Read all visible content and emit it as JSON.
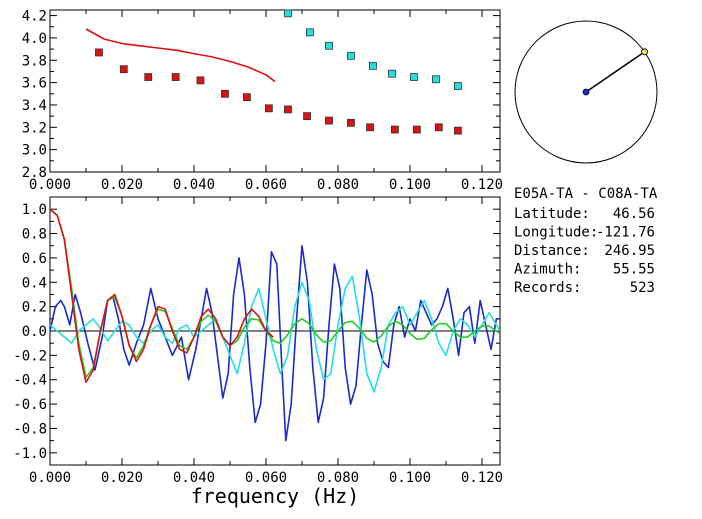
{
  "station_pair": "E05A-TA - C08A-TA",
  "info": [
    {
      "label": "Latitude:",
      "value": "46.56"
    },
    {
      "label": "Longitude:",
      "value": "-121.76"
    },
    {
      "label": "Distance:",
      "value": "246.95"
    },
    {
      "label": "Azimuth:",
      "value": "55.55"
    },
    {
      "label": "Records:",
      "value": "523"
    }
  ],
  "azimuth_deg": 55.55,
  "colors": {
    "red": "#dd1111",
    "blue": "#1a2acc",
    "cyan": "#22e0e0",
    "green": "#22cc22",
    "black": "#000000"
  },
  "chart_data": [
    {
      "type": "scatter",
      "xlim": [
        0.0,
        0.125
      ],
      "ylim": [
        2.8,
        4.25
      ],
      "xticks": [
        "0.000",
        "0.020",
        "0.040",
        "0.060",
        "0.080",
        "0.100",
        "0.120"
      ],
      "yticks": [
        "2.8",
        "3.0",
        "3.2",
        "3.4",
        "3.6",
        "3.8",
        "4.0",
        "4.2"
      ],
      "series": [
        {
          "color": "red",
          "mode": "line",
          "x": [
            0.01,
            0.015,
            0.02,
            0.025,
            0.03,
            0.035,
            0.04,
            0.045,
            0.05,
            0.055,
            0.06,
            0.0625
          ],
          "y": [
            4.08,
            3.99,
            3.95,
            3.93,
            3.91,
            3.89,
            3.86,
            3.83,
            3.79,
            3.74,
            3.67,
            3.61
          ]
        },
        {
          "color": "red",
          "mode": "markers",
          "x": [
            0.0136,
            0.0205,
            0.0273,
            0.0349,
            0.0418,
            0.0486,
            0.0547,
            0.0608,
            0.0661,
            0.0714,
            0.0775,
            0.0836,
            0.0889,
            0.0958,
            0.1019,
            0.108,
            0.1133
          ],
          "y": [
            3.87,
            3.72,
            3.65,
            3.65,
            3.62,
            3.5,
            3.47,
            3.37,
            3.36,
            3.3,
            3.26,
            3.24,
            3.2,
            3.18,
            3.18,
            3.2,
            3.17
          ]
        },
        {
          "color": "cyan",
          "mode": "markers",
          "x": [
            0.0661,
            0.0722,
            0.0775,
            0.0836,
            0.0897,
            0.095,
            0.1011,
            0.1072,
            0.1133
          ],
          "y": [
            4.22,
            4.05,
            3.93,
            3.84,
            3.75,
            3.68,
            3.65,
            3.63,
            3.57
          ]
        }
      ]
    },
    {
      "type": "line",
      "xlabel": "frequency (Hz)",
      "xlim": [
        0.0,
        0.125
      ],
      "ylim": [
        -1.1,
        1.1
      ],
      "xticks": [
        "0.000",
        "0.020",
        "0.040",
        "0.060",
        "0.080",
        "0.100",
        "0.120"
      ],
      "yticks": [
        "1.0",
        "0.8",
        "0.6",
        "0.4",
        "0.2",
        "0.0",
        "-0.2",
        "-0.4",
        "-0.6",
        "-0.8",
        "-1.0"
      ],
      "series": [
        {
          "color": "blue",
          "x": [
            0.0,
            0.0015,
            0.003,
            0.004,
            0.0055,
            0.007,
            0.0085,
            0.0105,
            0.0125,
            0.0145,
            0.016,
            0.0175,
            0.019,
            0.0205,
            0.022,
            0.024,
            0.026,
            0.028,
            0.03,
            0.032,
            0.034,
            0.0365,
            0.0385,
            0.0405,
            0.042,
            0.0435,
            0.045,
            0.0465,
            0.048,
            0.0495,
            0.051,
            0.0525,
            0.054,
            0.0555,
            0.057,
            0.0585,
            0.06,
            0.0615,
            0.063,
            0.0645,
            0.0655,
            0.067,
            0.0685,
            0.07,
            0.0715,
            0.073,
            0.0745,
            0.076,
            0.0775,
            0.079,
            0.0805,
            0.082,
            0.0835,
            0.085,
            0.0865,
            0.088,
            0.0895,
            0.091,
            0.0925,
            0.094,
            0.0955,
            0.097,
            0.0985,
            0.1,
            0.1015,
            0.103,
            0.1045,
            0.106,
            0.1075,
            0.109,
            0.1105,
            0.112,
            0.1135,
            0.115,
            0.1165,
            0.118,
            0.1195,
            0.121,
            0.1225,
            0.124,
            0.125
          ],
          "y": [
            0.0,
            0.2,
            0.25,
            0.2,
            0.05,
            0.3,
            0.15,
            -0.1,
            -0.32,
            -0.05,
            0.25,
            0.28,
            0.1,
            -0.15,
            -0.28,
            -0.1,
            0.05,
            0.35,
            0.1,
            -0.05,
            -0.2,
            -0.05,
            -0.4,
            -0.15,
            0.1,
            0.35,
            0.15,
            -0.2,
            -0.55,
            -0.35,
            0.3,
            0.6,
            0.3,
            -0.3,
            -0.75,
            -0.6,
            -0.1,
            0.65,
            0.55,
            -0.35,
            -0.9,
            -0.6,
            0.1,
            0.7,
            0.4,
            -0.3,
            -0.75,
            -0.55,
            0.05,
            0.55,
            0.35,
            -0.3,
            -0.6,
            -0.45,
            0.05,
            0.5,
            0.3,
            -0.1,
            -0.25,
            -0.3,
            0.05,
            0.2,
            -0.05,
            0.1,
            0.0,
            0.25,
            0.15,
            0.05,
            0.1,
            0.2,
            0.35,
            0.1,
            -0.2,
            0.15,
            0.2,
            -0.1,
            0.25,
            0.05,
            -0.15,
            0.1,
            0.1
          ]
        },
        {
          "color": "cyan",
          "x": [
            0.0,
            0.002,
            0.004,
            0.006,
            0.008,
            0.01,
            0.012,
            0.014,
            0.016,
            0.018,
            0.02,
            0.022,
            0.024,
            0.026,
            0.028,
            0.03,
            0.032,
            0.034,
            0.036,
            0.038,
            0.04,
            0.042,
            0.044,
            0.046,
            0.048,
            0.05,
            0.052,
            0.054,
            0.056,
            0.058,
            0.06,
            0.062,
            0.064,
            0.066,
            0.068,
            0.07,
            0.072,
            0.074,
            0.076,
            0.078,
            0.08,
            0.082,
            0.084,
            0.086,
            0.088,
            0.09,
            0.092,
            0.094,
            0.096,
            0.098,
            0.1,
            0.102,
            0.104,
            0.106,
            0.108,
            0.11,
            0.112,
            0.114,
            0.116,
            0.118,
            0.12,
            0.122,
            0.124,
            0.125
          ],
          "y": [
            0.05,
            0.0,
            -0.05,
            -0.1,
            0.0,
            0.05,
            0.1,
            0.02,
            -0.08,
            0.0,
            0.08,
            0.05,
            -0.05,
            -0.1,
            0.0,
            0.05,
            -0.05,
            -0.1,
            0.02,
            0.05,
            -0.05,
            0.0,
            0.05,
            0.1,
            -0.05,
            -0.2,
            -0.35,
            -0.1,
            0.2,
            0.35,
            0.1,
            -0.15,
            -0.35,
            -0.2,
            0.2,
            0.4,
            0.25,
            -0.15,
            -0.4,
            -0.35,
            0.05,
            0.35,
            0.45,
            0.1,
            -0.35,
            -0.5,
            -0.3,
            0.05,
            0.15,
            0.2,
            0.05,
            0.15,
            0.25,
            0.1,
            -0.1,
            -0.2,
            0.0,
            0.1,
            0.05,
            -0.05,
            0.05,
            0.15,
            0.05,
            0.0
          ]
        },
        {
          "color": "green",
          "x": [
            0.0,
            0.002,
            0.004,
            0.006,
            0.008,
            0.01,
            0.012,
            0.014,
            0.016,
            0.018,
            0.02,
            0.022,
            0.024,
            0.026,
            0.028,
            0.03,
            0.032,
            0.034,
            0.036,
            0.038,
            0.04,
            0.042,
            0.044,
            0.046,
            0.048,
            0.05,
            0.052,
            0.054,
            0.056,
            0.058,
            0.06,
            0.062,
            0.064,
            0.066,
            0.068,
            0.07,
            0.072,
            0.074,
            0.076,
            0.078,
            0.08,
            0.082,
            0.084,
            0.086,
            0.088,
            0.09,
            0.092,
            0.094,
            0.096,
            0.098,
            0.1,
            0.102,
            0.104,
            0.106,
            0.108,
            0.11,
            0.112,
            0.114,
            0.116,
            0.118,
            0.12,
            0.122,
            0.124,
            0.125
          ],
          "y": [
            1.0,
            0.95,
            0.75,
            0.35,
            -0.1,
            -0.38,
            -0.3,
            0.0,
            0.25,
            0.28,
            0.12,
            -0.12,
            -0.22,
            -0.12,
            0.05,
            0.18,
            0.16,
            0.02,
            -0.12,
            -0.15,
            -0.05,
            0.08,
            0.13,
            0.08,
            -0.05,
            -0.12,
            -0.08,
            0.03,
            0.1,
            0.09,
            0.0,
            -0.08,
            -0.1,
            -0.03,
            0.06,
            0.1,
            0.06,
            -0.03,
            -0.09,
            -0.08,
            0.0,
            0.07,
            0.08,
            0.02,
            -0.06,
            -0.09,
            -0.04,
            0.04,
            0.08,
            0.05,
            -0.02,
            -0.07,
            -0.06,
            0.01,
            0.06,
            0.06,
            0.0,
            -0.05,
            -0.05,
            0.0,
            0.04,
            0.04,
            0.0,
            -0.02
          ]
        },
        {
          "color": "red",
          "x": [
            0.0,
            0.002,
            0.004,
            0.006,
            0.008,
            0.01,
            0.012,
            0.014,
            0.016,
            0.018,
            0.02,
            0.022,
            0.024,
            0.026,
            0.028,
            0.03,
            0.032,
            0.034,
            0.036,
            0.038,
            0.04,
            0.042,
            0.044,
            0.046,
            0.048,
            0.05,
            0.052,
            0.054,
            0.056,
            0.058,
            0.06,
            0.062
          ],
          "y": [
            1.0,
            0.95,
            0.75,
            0.3,
            -0.15,
            -0.42,
            -0.32,
            0.0,
            0.25,
            0.3,
            0.12,
            -0.12,
            -0.25,
            -0.15,
            0.05,
            0.2,
            0.18,
            0.0,
            -0.15,
            -0.18,
            -0.05,
            0.12,
            0.18,
            0.1,
            -0.05,
            -0.12,
            -0.05,
            0.1,
            0.18,
            0.12,
            0.0,
            -0.05
          ]
        }
      ]
    }
  ]
}
